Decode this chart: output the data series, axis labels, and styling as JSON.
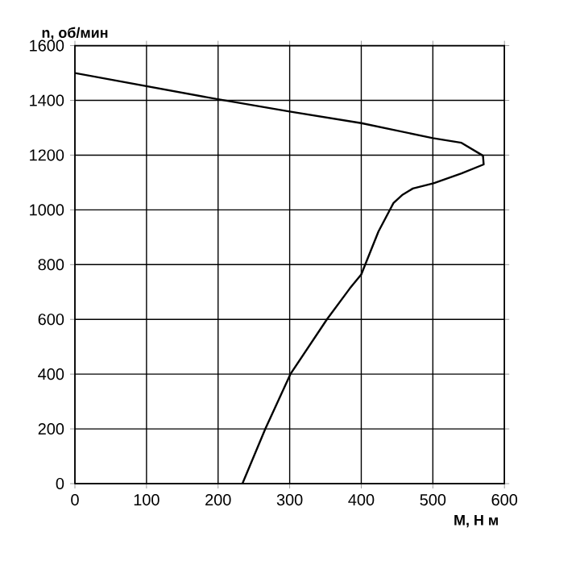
{
  "chart_data": {
    "type": "line",
    "xlabel": "M, Н м",
    "ylabel": "n, об/мин",
    "xlim": [
      0,
      600
    ],
    "xticks": [
      0,
      100,
      200,
      300,
      400,
      500,
      600
    ],
    "ylim": [
      0,
      1600
    ],
    "yticks": [
      0,
      200,
      400,
      600,
      800,
      1000,
      1200,
      1400,
      1600
    ],
    "grid": true,
    "series": [
      {
        "color": "#000000",
        "x": [
          0,
          200,
          300,
          400,
          500,
          540,
          570,
          571,
          540,
          501,
          472,
          457,
          445,
          424,
          400,
          384,
          352,
          301,
          266,
          234
        ],
        "values": [
          1500,
          1404,
          1359,
          1317,
          1262,
          1245,
          1198,
          1166,
          1133,
          1097,
          1078,
          1054,
          1025,
          921,
          764,
          713,
          600,
          400,
          200,
          0
        ]
      }
    ]
  }
}
